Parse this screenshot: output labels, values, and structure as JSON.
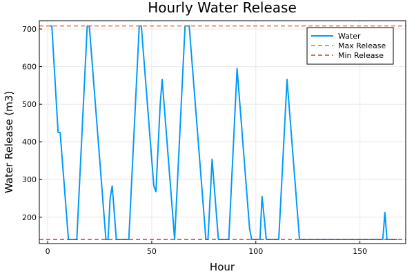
{
  "chart_data": {
    "type": "line",
    "title": "Hourly Water Release",
    "xlabel": "Hour",
    "ylabel": "Water Release (m3)",
    "xlim": [
      -4,
      172
    ],
    "ylim": [
      130,
      722
    ],
    "x_ticks": [
      0,
      50,
      100,
      150
    ],
    "y_ticks": [
      200,
      300,
      400,
      500,
      600,
      700
    ],
    "grid": true,
    "legend_position": "top-right",
    "series": [
      {
        "name": "Water",
        "color": "#009af9",
        "points": [
          [
            1,
            708
          ],
          [
            2,
            708
          ],
          [
            5,
            425
          ],
          [
            6,
            425
          ],
          [
            10,
            141
          ],
          [
            14,
            141
          ],
          [
            19,
            708
          ],
          [
            20,
            708
          ],
          [
            28,
            141
          ],
          [
            29,
            141
          ],
          [
            30,
            250
          ],
          [
            31,
            283
          ],
          [
            33,
            141
          ],
          [
            39,
            141
          ],
          [
            44,
            708
          ],
          [
            45,
            708
          ],
          [
            51,
            283
          ],
          [
            52,
            268
          ],
          [
            54,
            495
          ],
          [
            55,
            566
          ],
          [
            61,
            141
          ],
          [
            66,
            708
          ],
          [
            68,
            708
          ],
          [
            76,
            141
          ],
          [
            77,
            141
          ],
          [
            79,
            354
          ],
          [
            82,
            141
          ],
          [
            87,
            141
          ],
          [
            91,
            595
          ],
          [
            97,
            170
          ],
          [
            98,
            141
          ],
          [
            102,
            141
          ],
          [
            103,
            255
          ],
          [
            104,
            200
          ],
          [
            105,
            141
          ],
          [
            111,
            141
          ],
          [
            115,
            566
          ],
          [
            121,
            141
          ],
          [
            161,
            141
          ],
          [
            162,
            213
          ],
          [
            163,
            141
          ],
          [
            168,
            141
          ]
        ]
      },
      {
        "name": "Max Release",
        "color": "#e26f46",
        "style": "dashed",
        "constant": 708
      },
      {
        "name": "Min Release",
        "color": "#e03020",
        "style": "dashed",
        "constant": 141
      }
    ]
  }
}
